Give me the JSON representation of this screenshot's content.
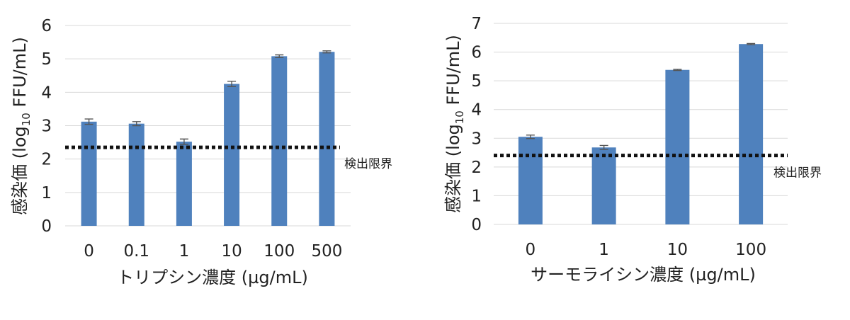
{
  "chart_data": [
    {
      "type": "bar",
      "categories": [
        "0",
        "0.1",
        "1",
        "10",
        "100",
        "500"
      ],
      "values": [
        3.12,
        3.06,
        2.52,
        4.25,
        5.08,
        5.21
      ],
      "errors": [
        0.08,
        0.06,
        0.08,
        0.08,
        0.04,
        0.03
      ],
      "xlabel": "トリプシン濃度 (µg/mL)",
      "ylabel_prefix": "感染価 (log",
      "ylabel_sub": "10",
      "ylabel_suffix": " FFU/mL)",
      "ylim": [
        0,
        6
      ],
      "yticks": [
        "0",
        "1",
        "2",
        "3",
        "4",
        "5",
        "6"
      ],
      "detection_limit": 2.35,
      "detection_limit_label": "検出限界",
      "bar_color": "#4f81bd",
      "grid": true
    },
    {
      "type": "bar",
      "categories": [
        "0",
        "1",
        "10",
        "100"
      ],
      "values": [
        3.05,
        2.68,
        5.38,
        6.28
      ],
      "errors": [
        0.06,
        0.07,
        0.02,
        0.02
      ],
      "xlabel": "サーモライシン濃度 (µg/mL)",
      "ylabel_prefix": "感染価 (log",
      "ylabel_sub": "10",
      "ylabel_suffix": " FFU/mL)",
      "ylim": [
        0,
        7
      ],
      "yticks": [
        "0",
        "1",
        "2",
        "3",
        "4",
        "5",
        "6",
        "7"
      ],
      "detection_limit": 2.4,
      "detection_limit_label": "検出限界",
      "bar_color": "#4f81bd",
      "grid": true
    }
  ]
}
